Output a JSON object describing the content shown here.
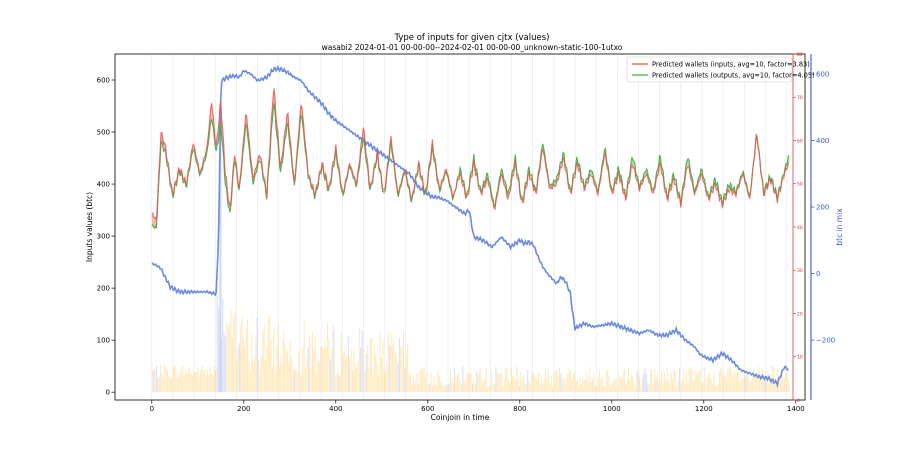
{
  "chart_data": {
    "type": "line",
    "title": "Type of inputs for given cjtx (values)",
    "subtitle": "wasabi2 2024-01-01 00-00-00--2024-02-01 00-00-00_unknown-static-100-1utxo",
    "xlabel": "Coinjoin in time",
    "ylabel_left": "Inputs values (btc)",
    "ylabel_right": "btc in mix",
    "xlim": [
      -80,
      1420
    ],
    "ylim_left": [
      -15,
      650
    ],
    "ylim_right_outer": [
      -380,
      660
    ],
    "ylim_right_inner": [
      0,
      80
    ],
    "x_ticks": [
      0,
      200,
      400,
      600,
      800,
      1000,
      1200,
      1400
    ],
    "y_ticks_left": [
      0,
      100,
      200,
      300,
      400,
      500,
      600
    ],
    "y_ticks_right_outer": [
      -200,
      0,
      200,
      400,
      600
    ],
    "y_ticks_right_inner": [
      0,
      10,
      20,
      30,
      40,
      50,
      60,
      70,
      80
    ],
    "legend_position": "top-right",
    "colors": {
      "inputs": "#e8554e",
      "outputs": "#4caf50",
      "btc_in_mix": "#6b8be0",
      "bars": "#ffd98a",
      "bars_alt": "#b9c6f2",
      "right_axis_outer": "#3b5bcc",
      "right_axis_inner": "#d62728"
    },
    "series": [
      {
        "name": "Predicted wallets (inputs, avg=10, factor=3.83)",
        "x": [
          0,
          10,
          20,
          30,
          45,
          60,
          75,
          90,
          105,
          120,
          130,
          140,
          150,
          160,
          170,
          180,
          190,
          205,
          220,
          235,
          250,
          265,
          280,
          295,
          310,
          325,
          340,
          355,
          370,
          385,
          400,
          415,
          430,
          445,
          460,
          475,
          490,
          505,
          520,
          535,
          550,
          565,
          580,
          595,
          610,
          625,
          640,
          655,
          670,
          685,
          700,
          715,
          730,
          745,
          760,
          775,
          790,
          805,
          820,
          835,
          850,
          865,
          880,
          895,
          910,
          925,
          940,
          955,
          970,
          985,
          1000,
          1015,
          1030,
          1045,
          1060,
          1075,
          1090,
          1105,
          1120,
          1135,
          1150,
          1165,
          1180,
          1195,
          1210,
          1225,
          1240,
          1255,
          1270,
          1285,
          1300,
          1315,
          1330,
          1345,
          1360,
          1375,
          1385
        ],
        "values": [
          345,
          330,
          500,
          470,
          380,
          430,
          400,
          480,
          420,
          470,
          560,
          470,
          560,
          420,
          350,
          460,
          390,
          540,
          410,
          460,
          380,
          590,
          430,
          540,
          400,
          560,
          420,
          380,
          440,
          390,
          470,
          380,
          440,
          400,
          510,
          390,
          460,
          380,
          490,
          380,
          430,
          370,
          440,
          380,
          480,
          390,
          430,
          375,
          420,
          370,
          440,
          380,
          410,
          350,
          420,
          370,
          440,
          360,
          420,
          380,
          470,
          390,
          400,
          450,
          380,
          440,
          390,
          420,
          380,
          460,
          380,
          420,
          370,
          440,
          390,
          420,
          380,
          440,
          370,
          410,
          360,
          440,
          380,
          420,
          370,
          400,
          360,
          390,
          380,
          420,
          370,
          500,
          380,
          410,
          370,
          420,
          440
        ]
      },
      {
        "name": "Predicted wallets (outputs, avg=10, factor=4.05)",
        "x": [
          0,
          10,
          20,
          30,
          45,
          60,
          75,
          90,
          105,
          120,
          130,
          140,
          150,
          160,
          170,
          180,
          190,
          205,
          220,
          235,
          250,
          265,
          280,
          295,
          310,
          325,
          340,
          355,
          370,
          385,
          400,
          415,
          430,
          445,
          460,
          475,
          490,
          505,
          520,
          535,
          550,
          565,
          580,
          595,
          610,
          625,
          640,
          655,
          670,
          685,
          700,
          715,
          730,
          745,
          760,
          775,
          790,
          805,
          820,
          835,
          850,
          865,
          880,
          895,
          910,
          925,
          940,
          955,
          970,
          985,
          1000,
          1015,
          1030,
          1045,
          1060,
          1075,
          1090,
          1105,
          1120,
          1135,
          1150,
          1165,
          1180,
          1195,
          1210,
          1225,
          1240,
          1255,
          1270,
          1285,
          1300,
          1315,
          1330,
          1345,
          1360,
          1375,
          1385
        ],
        "values": [
          320,
          315,
          480,
          460,
          375,
          425,
          395,
          470,
          415,
          460,
          530,
          460,
          520,
          400,
          340,
          450,
          385,
          520,
          400,
          450,
          375,
          560,
          420,
          520,
          395,
          540,
          415,
          375,
          435,
          385,
          460,
          375,
          435,
          395,
          490,
          385,
          455,
          375,
          480,
          375,
          425,
          365,
          435,
          375,
          470,
          385,
          425,
          370,
          430,
          375,
          450,
          385,
          420,
          355,
          430,
          380,
          450,
          365,
          430,
          385,
          480,
          395,
          410,
          460,
          385,
          450,
          395,
          430,
          385,
          470,
          385,
          430,
          375,
          455,
          395,
          430,
          385,
          455,
          375,
          420,
          365,
          455,
          385,
          430,
          375,
          410,
          365,
          400,
          385,
          425,
          375,
          495,
          385,
          415,
          375,
          425,
          455
        ]
      },
      {
        "name": "btc in mix",
        "axis": "right",
        "x": [
          0,
          10,
          20,
          25,
          40,
          60,
          80,
          100,
          120,
          135,
          140,
          145,
          150,
          152,
          165,
          180,
          190,
          200,
          215,
          230,
          250,
          265,
          280,
          295,
          310,
          325,
          340,
          355,
          370,
          385,
          400,
          420,
          440,
          460,
          480,
          500,
          510,
          530,
          550,
          560,
          570,
          580,
          600,
          610,
          620,
          640,
          660,
          680,
          690,
          700,
          720,
          740,
          760,
          780,
          800,
          810,
          820,
          830,
          840,
          850,
          860,
          880,
          890,
          900,
          910,
          915,
          920,
          940,
          960,
          980,
          1000,
          1020,
          1040,
          1060,
          1080,
          1100,
          1120,
          1140,
          1160,
          1180,
          1190,
          1200,
          1220,
          1230,
          1240,
          1260,
          1280,
          1300,
          1320,
          1340,
          1360,
          1375,
          1385
        ],
        "values": [
          30,
          25,
          15,
          0,
          -40,
          -55,
          -55,
          -55,
          -55,
          -60,
          -60,
          100,
          530,
          580,
          590,
          595,
          590,
          610,
          600,
          580,
          590,
          615,
          615,
          605,
          590,
          580,
          550,
          530,
          510,
          480,
          460,
          440,
          420,
          400,
          380,
          360,
          350,
          330,
          310,
          300,
          280,
          260,
          240,
          230,
          230,
          220,
          200,
          180,
          190,
          110,
          100,
          80,
          110,
          80,
          100,
          90,
          95,
          85,
          50,
          20,
          0,
          -30,
          -10,
          -25,
          -60,
          -120,
          -165,
          -150,
          -160,
          -155,
          -150,
          -160,
          -170,
          -180,
          -170,
          -185,
          -185,
          -170,
          -200,
          -220,
          -240,
          -250,
          -260,
          -250,
          -240,
          -260,
          -290,
          -300,
          -310,
          -315,
          -330,
          -280,
          -290
        ]
      }
    ]
  }
}
